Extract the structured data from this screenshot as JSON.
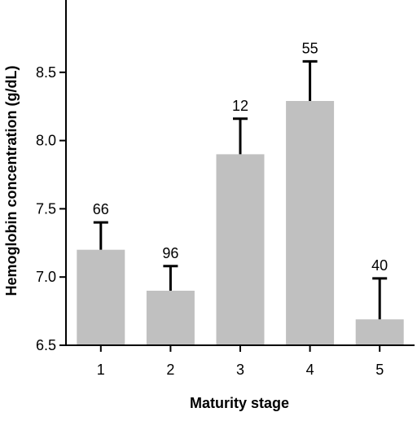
{
  "chart_data": {
    "type": "bar",
    "title": "",
    "xlabel": "Maturity stage",
    "ylabel": "Hemoglobin concentration (g/dL)",
    "categories": [
      "1",
      "2",
      "3",
      "4",
      "5"
    ],
    "values": [
      7.2,
      6.9,
      7.9,
      8.29,
      6.69
    ],
    "error_upper": [
      7.4,
      7.08,
      8.16,
      8.58,
      6.99
    ],
    "bar_labels": [
      "66",
      "96",
      "12",
      "55",
      "40"
    ],
    "ylim": [
      6.5,
      9.0
    ],
    "yticks": [
      6.5,
      7.0,
      7.5,
      8.0,
      8.5
    ],
    "ytick_labels": [
      "6.5",
      "7.0",
      "7.5",
      "8.0",
      "8.5"
    ],
    "grid": false,
    "legend": "none",
    "bar_color": "#c0c0c0",
    "axis_color": "#000000"
  }
}
